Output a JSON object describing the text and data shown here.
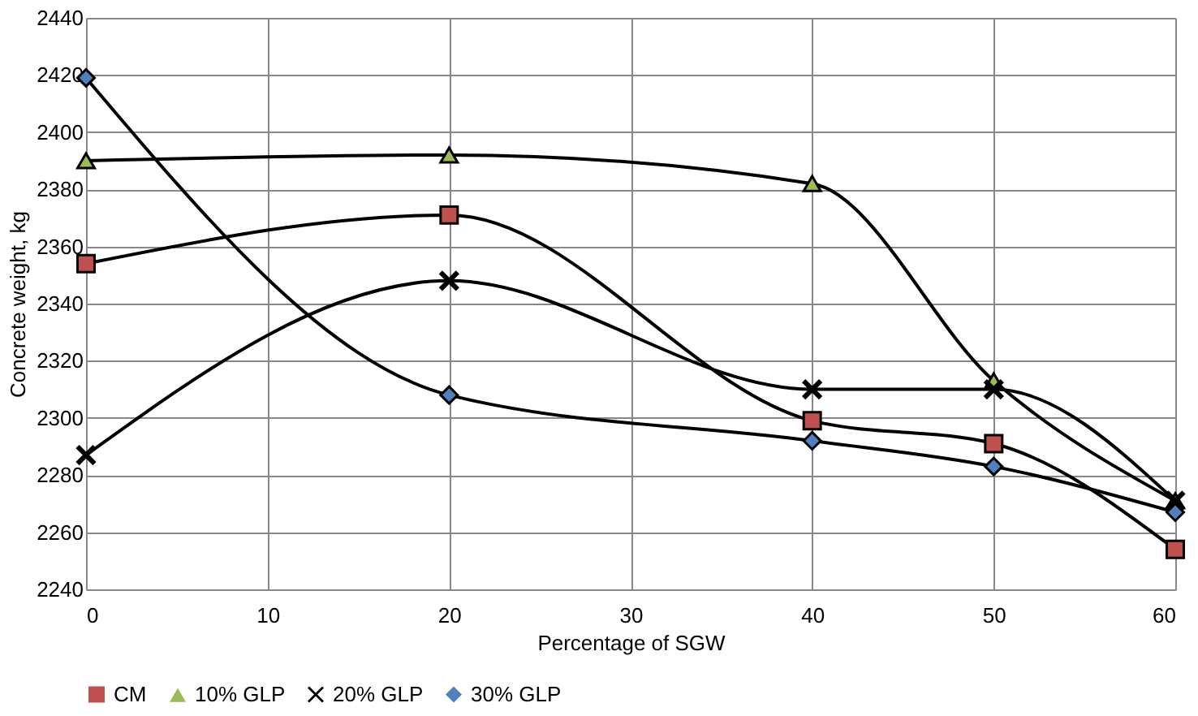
{
  "chart_data": {
    "type": "line",
    "xlabel": "Percentage of SGW",
    "ylabel": "Concrete weight, kg",
    "x": [
      0,
      20,
      40,
      50,
      60
    ],
    "series": [
      {
        "name": "CM",
        "color": "#c0504d",
        "marker": "square",
        "values": [
          2354,
          2371,
          2299,
          2291,
          2254
        ]
      },
      {
        "name": "10% GLP",
        "color": "#9bbb59",
        "marker": "triangle",
        "values": [
          2390,
          2392,
          2382,
          2313,
          2271
        ]
      },
      {
        "name": "20% GLP",
        "color": "#000000",
        "marker": "cross",
        "values": [
          2287,
          2348,
          2310,
          2310,
          2271
        ]
      },
      {
        "name": "30% GLP",
        "color": "#4f81bd",
        "marker": "diamond",
        "values": [
          2419,
          2308,
          2292,
          2283,
          2267
        ]
      }
    ],
    "xlim": [
      0,
      60
    ],
    "xticks": [
      0,
      10,
      20,
      30,
      40,
      50,
      60
    ],
    "ylim": [
      2240,
      2440
    ],
    "yticks": [
      2240,
      2260,
      2280,
      2300,
      2320,
      2340,
      2360,
      2380,
      2400,
      2420,
      2440
    ],
    "grid": true,
    "legend": "bottom",
    "line_style": "solid"
  }
}
